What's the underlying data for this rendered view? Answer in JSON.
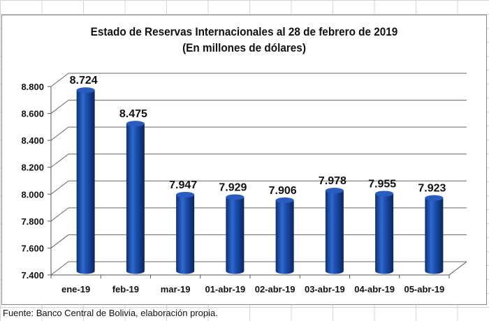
{
  "chart_data": {
    "type": "bar",
    "title": "Estado de Reservas Internacionales  al 28 de febrero de 2019",
    "subtitle": "(En millones de dólares)",
    "categories": [
      "ene-19",
      "feb-19",
      "mar-19",
      "01-abr-19",
      "02-abr-19",
      "03-abr-19",
      "04-abr-19",
      "05-abr-19"
    ],
    "values": [
      8724,
      8475,
      7947,
      7929,
      7906,
      7978,
      7955,
      7923
    ],
    "data_labels": [
      "8.724",
      "8.475",
      "7.947",
      "7.929",
      "7.906",
      "7.978",
      "7.955",
      "7.923"
    ],
    "yticks": [
      7400,
      7600,
      7800,
      8000,
      8200,
      8400,
      8600,
      8800
    ],
    "ytick_labels": [
      "7.400",
      "7.600",
      "7.800",
      "8.000",
      "8.200",
      "8.400",
      "8.600",
      "8.800"
    ],
    "ylim": [
      7400,
      8800
    ],
    "xlabel": "",
    "ylabel": "",
    "grid": true,
    "legend": "none",
    "bar_color": "#1a4fa8"
  },
  "source": "Fuente: Banco Central de Bolivia, elaboración propia."
}
